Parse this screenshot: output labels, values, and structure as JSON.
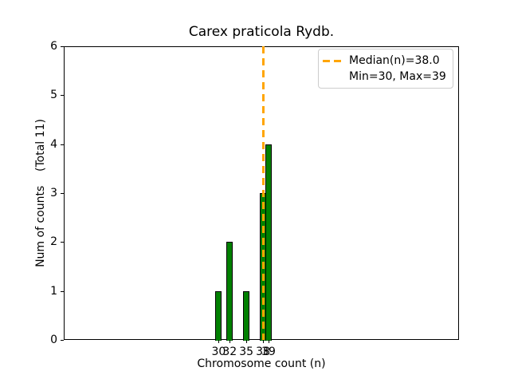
{
  "figure": {
    "title": "Carex praticola Rydb.",
    "xlabel": "Chromosome count (n)",
    "ylabel": "Num of counts    (Total 11)"
  },
  "legend": {
    "position": "upper right",
    "entries": [
      {
        "label": "Median(n)=38.0"
      },
      {
        "label": "Min=30, Max=39"
      }
    ]
  },
  "chart_data": {
    "type": "bar",
    "title": "Carex praticola Rydb.",
    "xlabel": "Chromosome count (n)",
    "ylabel": "Num of counts (Total 11)",
    "categories": [
      30,
      32,
      35,
      38,
      39
    ],
    "values": [
      1,
      2,
      1,
      3,
      4
    ],
    "total_counts": 11,
    "median_n": 38.0,
    "min_n": 30,
    "max_n": 39,
    "xticks": [
      30,
      32,
      35,
      38,
      39
    ],
    "yticks": [
      0,
      1,
      2,
      3,
      4,
      5,
      6
    ],
    "xlim": [
      2.1,
      73.3
    ],
    "ylim": [
      0,
      6
    ],
    "bar_width_units": 0.8,
    "grid": false,
    "legend_position": "upper right",
    "legend_entries": [
      "Median(n)=38.0",
      "Min=30, Max=39"
    ],
    "colors": {
      "bar_fill": "#008000",
      "bar_edge": "#000000",
      "median_line": "#FFA500"
    }
  }
}
